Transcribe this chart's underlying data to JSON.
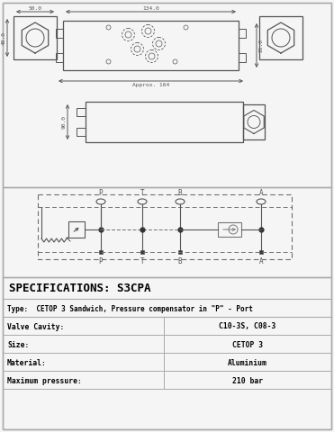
{
  "title": "SPECIFICATIONS: S3CPA",
  "type_label": "Type:  CETOP 3 Sandwich, Pressure compensator in \"P\" - Port",
  "specs": [
    {
      "label": "Valve Cavity:",
      "value": "C10-3S, C08-3"
    },
    {
      "label": "Size:",
      "value": "CETOP 3"
    },
    {
      "label": "Material:",
      "value": "Aluminium"
    },
    {
      "label": "Maximum pressure:",
      "value": "210 bar"
    }
  ],
  "dim_50": "50.0",
  "dim_134": "134.0",
  "dim_48": "48.0",
  "dim_21": "21.0",
  "dim_164": "Approx. 164",
  "dim_90": "90.0",
  "bg_color": "#f5f5f5",
  "line_color": "#555555",
  "border_color": "#aaaaaa",
  "table_line_color": "#aaaaaa"
}
